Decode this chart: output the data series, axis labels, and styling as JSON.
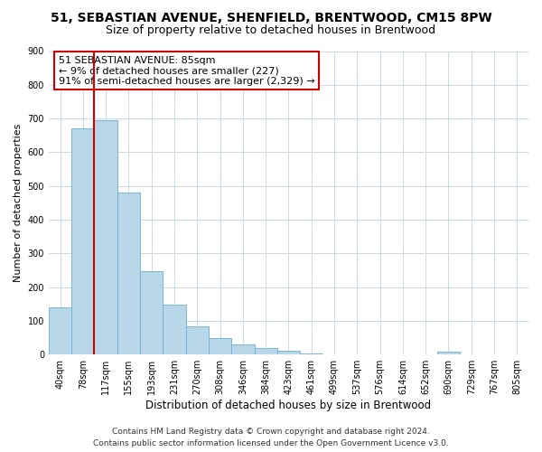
{
  "title": "51, SEBASTIAN AVENUE, SHENFIELD, BRENTWOOD, CM15 8PW",
  "subtitle": "Size of property relative to detached houses in Brentwood",
  "xlabel": "Distribution of detached houses by size in Brentwood",
  "ylabel": "Number of detached properties",
  "bar_labels": [
    "40sqm",
    "78sqm",
    "117sqm",
    "155sqm",
    "193sqm",
    "231sqm",
    "270sqm",
    "308sqm",
    "346sqm",
    "384sqm",
    "423sqm",
    "461sqm",
    "499sqm",
    "537sqm",
    "576sqm",
    "614sqm",
    "652sqm",
    "690sqm",
    "729sqm",
    "767sqm",
    "805sqm"
  ],
  "bar_values": [
    140,
    670,
    695,
    480,
    248,
    148,
    85,
    50,
    30,
    18,
    10,
    3,
    1,
    0,
    0,
    0,
    0,
    8,
    0,
    0,
    0
  ],
  "bar_color": "#b8d8ea",
  "bar_edge_color": "#6aafd4",
  "vline_x": 1.5,
  "vline_color": "#cc0000",
  "annotation_line1": "51 SEBASTIAN AVENUE: 85sqm",
  "annotation_line2": "← 9% of detached houses are smaller (227)",
  "annotation_line3": "91% of semi-detached houses are larger (2,329) →",
  "annotation_box_color": "#ffffff",
  "annotation_box_edge": "#cc0000",
  "ylim": [
    0,
    900
  ],
  "yticks": [
    0,
    100,
    200,
    300,
    400,
    500,
    600,
    700,
    800,
    900
  ],
  "footer_line1": "Contains HM Land Registry data © Crown copyright and database right 2024.",
  "footer_line2": "Contains public sector information licensed under the Open Government Licence v3.0.",
  "background_color": "#ffffff",
  "grid_color": "#c8d8e8",
  "title_fontsize": 10,
  "subtitle_fontsize": 9,
  "xlabel_fontsize": 8.5,
  "ylabel_fontsize": 8,
  "tick_fontsize": 7,
  "annotation_fontsize": 8,
  "footer_fontsize": 6.5
}
